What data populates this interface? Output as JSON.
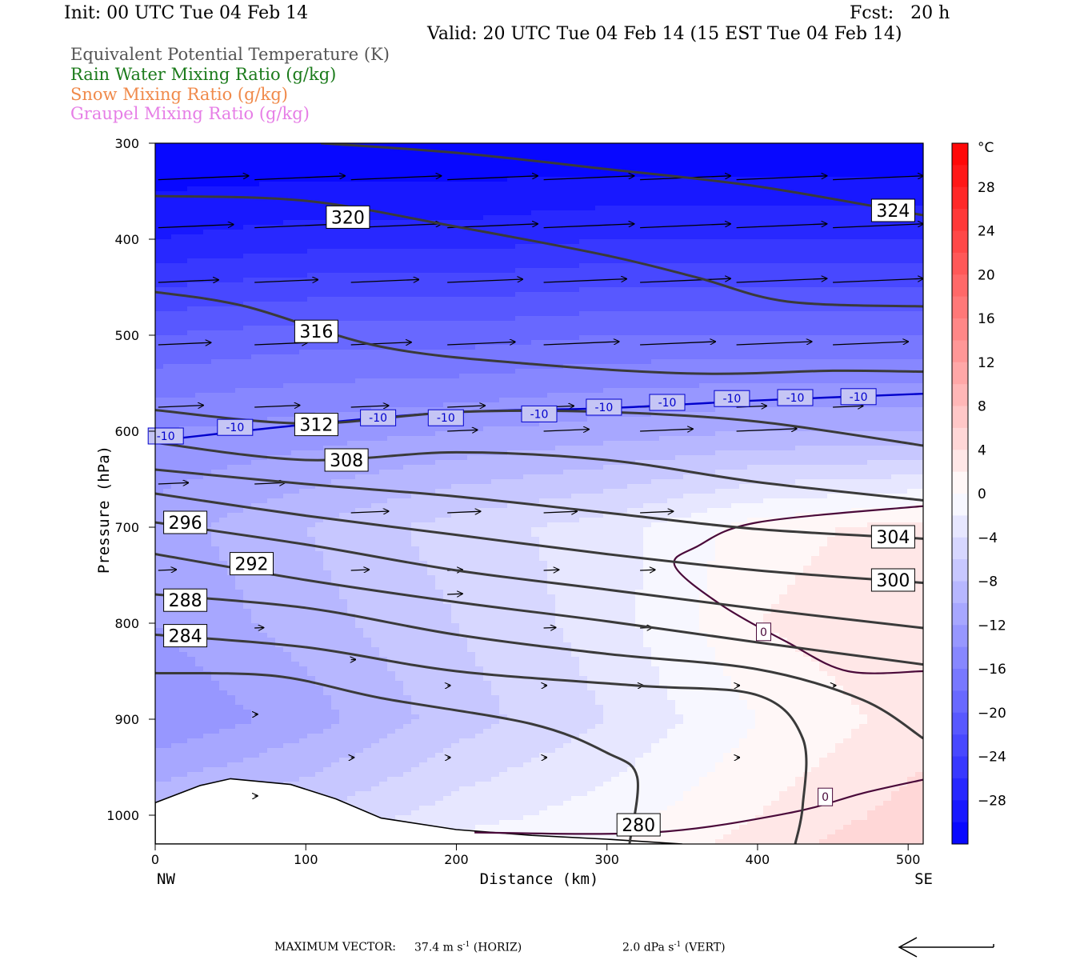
{
  "header": {
    "init": "Init: 00 UTC Tue 04 Feb 14",
    "fcst": "Fcst:   20 h",
    "valid": "Valid: 20 UTC Tue 04 Feb 14 (15 EST Tue 04 Feb 14)"
  },
  "legend": [
    {
      "label": "Equivalent Potential Temperature (K)",
      "color": "#555555"
    },
    {
      "label": "Rain Water Mixing Ratio (g/kg)",
      "color": "#1a7a1a"
    },
    {
      "label": "Snow Mixing Ratio (g/kg)",
      "color": "#f08a4b"
    },
    {
      "label": "Graupel Mixing Ratio (g/kg)",
      "color": "#e67ee6"
    }
  ],
  "footer": {
    "label": "MAXIMUM VECTOR:",
    "horiz_value": "37.4",
    "horiz_unit": "m s",
    "horiz_exp": "-1",
    "horiz_tag": "(HORIZ)",
    "vert_value": "2.0",
    "vert_unit": "dPa s",
    "vert_exp": "-1",
    "vert_tag": "(VERT)"
  },
  "chart_data": {
    "type": "contour",
    "xlabel": "Distance (km)",
    "ylabel": "Pressure (hPa)",
    "xlim": [
      0,
      510
    ],
    "ylim": [
      1030,
      300
    ],
    "x_ticks": [
      0,
      100,
      200,
      300,
      400,
      500
    ],
    "y_ticks": [
      300,
      400,
      500,
      600,
      700,
      800,
      900,
      1000
    ],
    "x_end_labels": {
      "left": "NW",
      "right": "SE"
    },
    "colorbar": {
      "unit": "°C",
      "range": [
        -32,
        32
      ],
      "ticks": [
        28,
        24,
        20,
        16,
        12,
        8,
        4,
        0,
        -4,
        -8,
        -12,
        -16,
        -20,
        -24,
        -28
      ],
      "low_color": "#0000ff",
      "high_color": "#ff0000",
      "mid_color": "#ffffff"
    },
    "temperature_field": {
      "unit": "°C",
      "description_levels": "filled temperature bands",
      "columns_km": [
        0,
        100,
        200,
        300,
        400,
        510
      ],
      "rows_hpa": [
        300,
        400,
        500,
        600,
        700,
        800,
        900,
        1000,
        1030
      ],
      "values": [
        [
          -32,
          -32,
          -32,
          -32,
          -32,
          -32
        ],
        [
          -28,
          -27,
          -27,
          -26,
          -26,
          -26
        ],
        [
          -20,
          -19,
          -19,
          -18,
          -18,
          -18
        ],
        [
          -14,
          -13,
          -12,
          -11,
          -10,
          -10
        ],
        [
          -11,
          -8,
          -5,
          -3,
          1,
          3
        ],
        [
          -12,
          -9,
          -6,
          -3,
          2,
          4
        ],
        [
          -14,
          -11,
          -7,
          -4,
          0,
          3
        ],
        [
          -8,
          -6,
          -3,
          -1,
          2,
          5
        ],
        [
          0,
          -2,
          -1,
          0,
          3,
          6
        ]
      ]
    },
    "theta_e_contours": [
      {
        "level": 324,
        "label_at": [
          490,
          370
        ],
        "points": [
          [
            110,
            300
          ],
          [
            200,
            310
          ],
          [
            300,
            327
          ],
          [
            400,
            345
          ],
          [
            510,
            375
          ]
        ]
      },
      {
        "level": 320,
        "label_at": [
          128,
          377
        ],
        "points": [
          [
            0,
            355
          ],
          [
            100,
            360
          ],
          [
            200,
            387
          ],
          [
            300,
            417
          ],
          [
            360,
            440
          ],
          [
            420,
            465
          ],
          [
            510,
            470
          ]
        ]
      },
      {
        "level": 316,
        "label_at": [
          107,
          496
        ],
        "points": [
          [
            0,
            455
          ],
          [
            60,
            470
          ],
          [
            150,
            512
          ],
          [
            250,
            530
          ],
          [
            360,
            540
          ],
          [
            450,
            537
          ],
          [
            510,
            538
          ]
        ]
      },
      {
        "level": 312,
        "label_at": [
          107,
          593
        ],
        "points": [
          [
            0,
            578
          ],
          [
            100,
            592
          ],
          [
            200,
            580
          ],
          [
            300,
            580
          ],
          [
            400,
            590
          ],
          [
            510,
            615
          ]
        ]
      },
      {
        "level": 308,
        "label_at": [
          127,
          630
        ],
        "points": [
          [
            0,
            612
          ],
          [
            100,
            630
          ],
          [
            200,
            622
          ],
          [
            300,
            630
          ],
          [
            400,
            653
          ],
          [
            510,
            672
          ]
        ]
      },
      {
        "level": 304,
        "label_at": [
          490,
          710
        ],
        "points": [
          [
            0,
            640
          ],
          [
            100,
            655
          ],
          [
            200,
            668
          ],
          [
            300,
            685
          ],
          [
            400,
            702
          ],
          [
            510,
            712
          ]
        ]
      },
      {
        "level": 300,
        "label_at": [
          490,
          755
        ],
        "points": [
          [
            0,
            665
          ],
          [
            100,
            688
          ],
          [
            200,
            708
          ],
          [
            300,
            728
          ],
          [
            400,
            745
          ],
          [
            510,
            758
          ]
        ]
      },
      {
        "level": 296,
        "label_at": [
          20,
          695
        ],
        "points": [
          [
            0,
            695
          ],
          [
            100,
            718
          ],
          [
            200,
            745
          ],
          [
            300,
            765
          ],
          [
            400,
            785
          ],
          [
            510,
            805
          ]
        ]
      },
      {
        "level": 292,
        "label_at": [
          64,
          738
        ],
        "points": [
          [
            0,
            728
          ],
          [
            100,
            755
          ],
          [
            200,
            778
          ],
          [
            300,
            798
          ],
          [
            400,
            820
          ],
          [
            510,
            843
          ]
        ]
      },
      {
        "level": 288,
        "label_at": [
          20,
          776
        ],
        "points": [
          [
            0,
            770
          ],
          [
            100,
            784
          ],
          [
            200,
            812
          ],
          [
            300,
            832
          ],
          [
            400,
            848
          ],
          [
            470,
            880
          ],
          [
            510,
            920
          ]
        ]
      },
      {
        "level": 284,
        "label_at": [
          20,
          813
        ],
        "points": [
          [
            0,
            812
          ],
          [
            100,
            825
          ],
          [
            200,
            850
          ],
          [
            320,
            865
          ],
          [
            400,
            875
          ],
          [
            430,
            920
          ],
          [
            430,
            990
          ],
          [
            425,
            1030
          ]
        ]
      },
      {
        "level": 280,
        "label_at": [
          321,
          1010
        ],
        "points": [
          [
            0,
            852
          ],
          [
            80,
            855
          ],
          [
            150,
            878
          ],
          [
            250,
            905
          ],
          [
            300,
            935
          ],
          [
            320,
            960
          ],
          [
            315,
            1030
          ]
        ]
      }
    ],
    "freezing_contours": [
      {
        "level": 0,
        "label_at": [
          404,
          809
        ],
        "points": [
          [
            510,
            678
          ],
          [
            400,
            695
          ],
          [
            360,
            720
          ],
          [
            345,
            740
          ],
          [
            375,
            780
          ],
          [
            420,
            820
          ],
          [
            460,
            850
          ],
          [
            510,
            850
          ]
        ]
      },
      {
        "level": 0,
        "label_at": [
          445,
          981
        ],
        "points": [
          [
            212,
            1018
          ],
          [
            330,
            1018
          ],
          [
            420,
            998
          ],
          [
            470,
            977
          ],
          [
            510,
            963
          ]
        ]
      }
    ],
    "isotherm": {
      "level": -10,
      "color": "#0000cc",
      "label_points": [
        [
          7,
          605
        ],
        [
          53,
          596
        ],
        [
          148,
          586
        ],
        [
          193,
          586
        ],
        [
          255,
          582
        ],
        [
          298,
          575
        ],
        [
          340,
          570
        ],
        [
          383,
          566
        ],
        [
          425,
          565
        ],
        [
          467,
          564
        ]
      ],
      "points": [
        [
          0,
          610
        ],
        [
          100,
          593
        ],
        [
          200,
          580
        ],
        [
          300,
          576
        ],
        [
          400,
          568
        ],
        [
          510,
          561
        ]
      ]
    },
    "terrain": {
      "points": [
        [
          0,
          987
        ],
        [
          30,
          969
        ],
        [
          50,
          962
        ],
        [
          90,
          968
        ],
        [
          120,
          983
        ],
        [
          150,
          1003
        ],
        [
          200,
          1015
        ],
        [
          250,
          1021
        ],
        [
          300,
          1025
        ],
        [
          350,
          1030
        ]
      ]
    },
    "wind_rows_hpa": [
      338,
      388,
      445,
      510,
      575,
      600,
      655,
      685,
      710,
      745,
      770,
      805,
      838,
      865,
      895,
      940,
      980
    ],
    "wind_columns_km": [
      0,
      64,
      128,
      192,
      256,
      320,
      384,
      448
    ],
    "wind_vectors_km_length": [
      [
        60,
        60,
        60,
        60,
        60,
        60,
        60,
        60
      ],
      [
        50,
        55,
        60,
        60,
        60,
        60,
        60,
        60
      ],
      [
        40,
        42,
        45,
        50,
        55,
        60,
        60,
        60
      ],
      [
        35,
        35,
        40,
        45,
        50,
        50,
        50,
        50
      ],
      [
        30,
        30,
        25,
        25,
        20,
        20,
        20,
        20
      ],
      [
        0,
        0,
        0,
        20,
        30,
        35,
        40,
        0
      ],
      [
        20,
        20,
        0,
        0,
        0,
        0,
        0,
        0
      ],
      [
        0,
        0,
        25,
        22,
        22,
        22,
        0,
        0
      ],
      [
        0,
        0,
        0,
        0,
        0,
        0,
        0,
        0
      ],
      [
        12,
        0,
        12,
        10,
        10,
        10,
        0,
        0
      ],
      [
        0,
        0,
        0,
        10,
        0,
        0,
        0,
        0
      ],
      [
        0,
        6,
        0,
        0,
        8,
        8,
        0,
        0
      ],
      [
        0,
        0,
        3,
        0,
        0,
        0,
        0,
        0
      ],
      [
        0,
        0,
        0,
        2,
        2,
        2,
        2,
        2
      ],
      [
        0,
        2,
        0,
        0,
        0,
        0,
        0,
        0
      ],
      [
        0,
        0,
        2,
        2,
        2,
        0,
        2,
        0
      ],
      [
        0,
        2,
        0,
        0,
        0,
        0,
        0,
        0
      ]
    ],
    "reference_arrow": "horizontal, pointing left"
  }
}
